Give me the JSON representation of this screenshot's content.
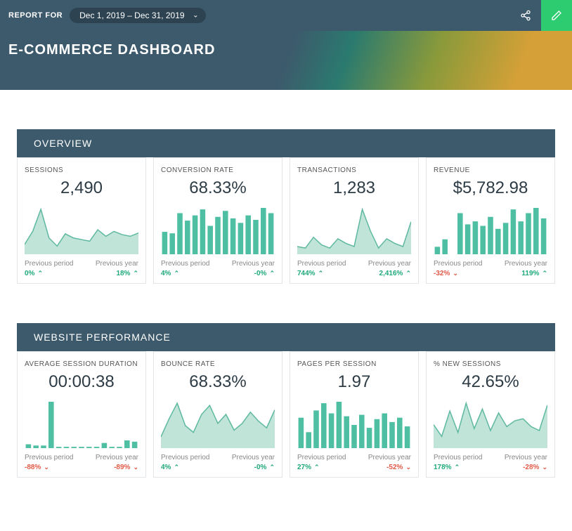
{
  "topbar": {
    "report_for_label": "REPORT FOR",
    "date_range": "Dec 1, 2019 – Dec 31, 2019"
  },
  "hero": {
    "title": "E-COMMERCE DASHBOARD"
  },
  "colors": {
    "topbar_bg": "#3d5a6c",
    "edit_bg": "#2ecc71",
    "section_bg": "#3d5a6c",
    "chart_fill": "#a7d8c9",
    "chart_stroke": "#5fb9a0",
    "bar_fill": "#4fbfa3",
    "up": "#1fa97a",
    "down": "#e05a47"
  },
  "sections": [
    {
      "title": "OVERVIEW",
      "cards": [
        {
          "title": "SESSIONS",
          "value": "2,490",
          "type": "area",
          "series": [
            12,
            28,
            55,
            20,
            10,
            25,
            20,
            18,
            16,
            30,
            22,
            28,
            24,
            22,
            26
          ],
          "prev_period": {
            "value": "0%",
            "dir": "up"
          },
          "prev_year": {
            "value": "18%",
            "dir": "up"
          }
        },
        {
          "title": "CONVERSION RATE",
          "value": "68.33%",
          "type": "bar",
          "series": [
            30,
            28,
            55,
            45,
            52,
            60,
            38,
            50,
            58,
            48,
            42,
            52,
            46,
            62,
            55
          ],
          "prev_period": {
            "value": "4%",
            "dir": "up"
          },
          "prev_year": {
            "value": "-0%",
            "dir": "up"
          }
        },
        {
          "title": "TRANSACTIONS",
          "value": "1,283",
          "type": "area",
          "series": [
            10,
            8,
            22,
            12,
            8,
            20,
            14,
            10,
            58,
            30,
            8,
            20,
            14,
            10,
            42
          ],
          "prev_period": {
            "value": "744%",
            "dir": "up"
          },
          "prev_year": {
            "value": "2,416%",
            "dir": "up"
          }
        },
        {
          "title": "REVENUE",
          "value": "$5,782.98",
          "type": "bar",
          "series": [
            10,
            20,
            0,
            55,
            40,
            44,
            38,
            50,
            34,
            42,
            60,
            44,
            55,
            62,
            48
          ],
          "prev_period": {
            "value": "-32%",
            "dir": "down"
          },
          "prev_year": {
            "value": "119%",
            "dir": "up"
          }
        }
      ]
    },
    {
      "title": "WEBSITE PERFORMANCE",
      "cards": [
        {
          "title": "AVERAGE SESSION DURATION",
          "value": "00:00:38",
          "type": "bar",
          "series": [
            6,
            4,
            4,
            72,
            2,
            2,
            2,
            2,
            2,
            2,
            8,
            2,
            2,
            12,
            10
          ],
          "prev_period": {
            "value": "-88%",
            "dir": "down"
          },
          "prev_year": {
            "value": "-89%",
            "dir": "down"
          }
        },
        {
          "title": "BOUNCE RATE",
          "value": "68.33%",
          "type": "area",
          "series": [
            10,
            26,
            40,
            20,
            14,
            30,
            38,
            22,
            30,
            16,
            22,
            32,
            24,
            18,
            34
          ],
          "prev_period": {
            "value": "4%",
            "dir": "up"
          },
          "prev_year": {
            "value": "-0%",
            "dir": "up"
          }
        },
        {
          "title": "PAGES PER SESSION",
          "value": "1.97",
          "type": "bar",
          "series": [
            42,
            22,
            52,
            62,
            48,
            64,
            44,
            32,
            46,
            28,
            40,
            48,
            36,
            42,
            30
          ],
          "prev_period": {
            "value": "27%",
            "dir": "up"
          },
          "prev_year": {
            "value": "-52%",
            "dir": "down"
          }
        },
        {
          "title": "% NEW SESSIONS",
          "value": "42.65%",
          "type": "area",
          "series": [
            24,
            12,
            38,
            16,
            46,
            20,
            40,
            18,
            36,
            22,
            28,
            30,
            22,
            18,
            44
          ],
          "prev_period": {
            "value": "178%",
            "dir": "up"
          },
          "prev_year": {
            "value": "-28%",
            "dir": "down"
          }
        }
      ]
    }
  ],
  "labels": {
    "previous_period": "Previous period",
    "previous_year": "Previous year"
  }
}
